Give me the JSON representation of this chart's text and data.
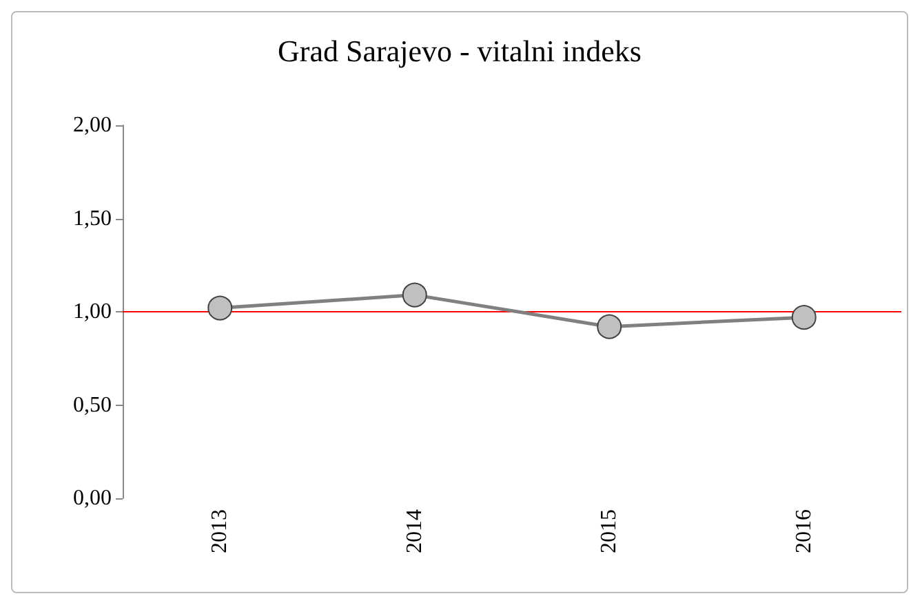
{
  "chart_data": {
    "type": "line",
    "title": "Grad Sarajevo - vitalni indeks",
    "categories": [
      "2013",
      "2014",
      "2015",
      "2016"
    ],
    "series": [
      {
        "color": "#808080",
        "values": [
          1.02,
          1.09,
          0.92,
          0.97
        ]
      }
    ],
    "ylim": [
      0,
      2
    ],
    "yticks": [
      {
        "value": 0,
        "label": "0,00"
      },
      {
        "value": 0.5,
        "label": "0,50"
      },
      {
        "value": 1,
        "label": "1,00"
      },
      {
        "value": 1.5,
        "label": "1,50"
      },
      {
        "value": 2,
        "label": "2,00"
      }
    ],
    "ref_lines": [
      {
        "axis": "y",
        "value": 1,
        "color": "#ff0000"
      }
    ],
    "grid": false,
    "marker": "circle",
    "line_style": "solid"
  }
}
